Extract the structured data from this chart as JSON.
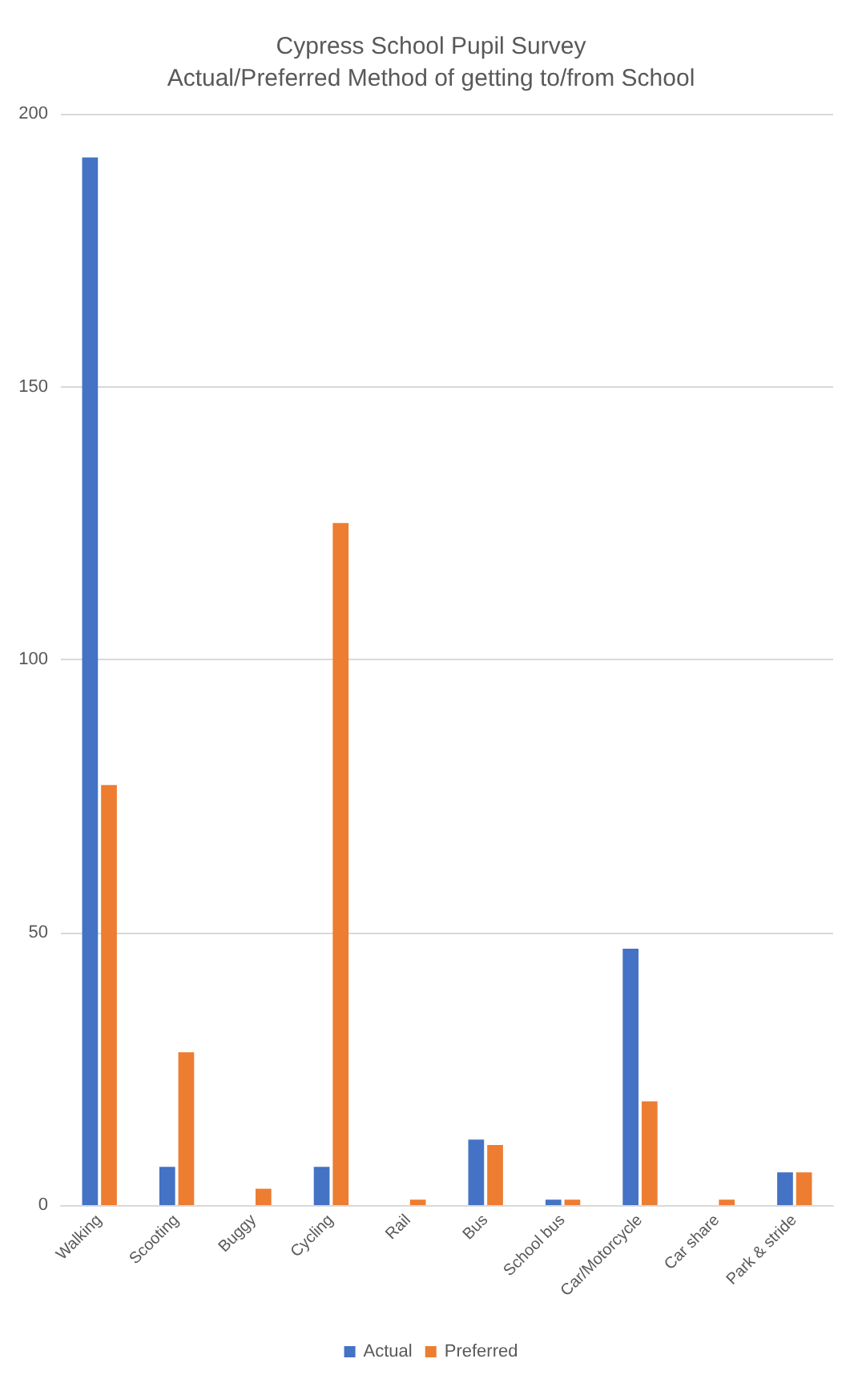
{
  "chart_data": {
    "type": "bar",
    "title": "Cypress School Pupil Survey\nActual/Preferred Method of getting to/from School",
    "categories": [
      "Walking",
      "Scooting",
      "Buggy",
      "Cycling",
      "Rail",
      "Bus",
      "School bus",
      "Car/Motorcycle",
      "Car share",
      "Park & stride"
    ],
    "series": [
      {
        "name": "Actual",
        "color": "#4472c4",
        "values": [
          192,
          7,
          0,
          7,
          0,
          12,
          1,
          47,
          0,
          6
        ]
      },
      {
        "name": "Preferred",
        "color": "#ed7d31",
        "values": [
          77,
          28,
          3,
          125,
          1,
          11,
          1,
          19,
          1,
          6
        ]
      }
    ],
    "ylim": [
      0,
      200
    ],
    "yticks": [
      0,
      50,
      100,
      150,
      200
    ],
    "grid": "y",
    "legend": "bottom"
  }
}
